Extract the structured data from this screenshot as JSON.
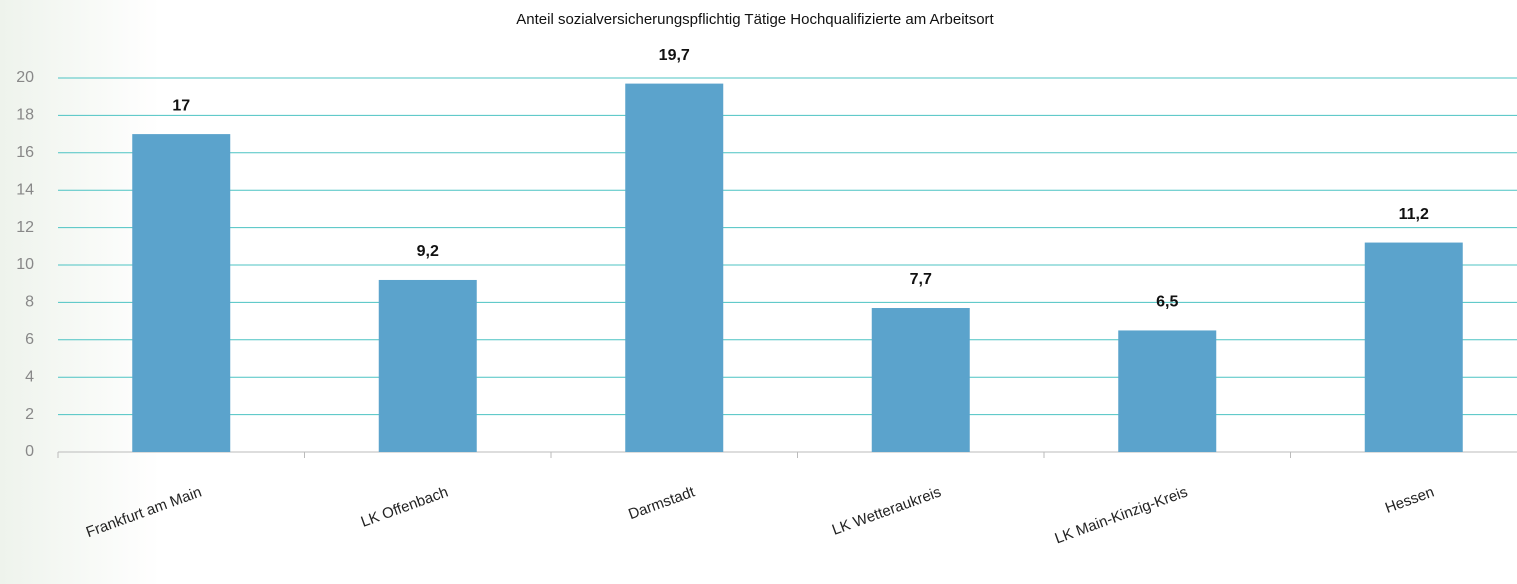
{
  "chart_data": {
    "type": "bar",
    "title": "Anteil sozialversicherungspflichtig Tätige Hochqualifizierte am Arbeitsort",
    "categories": [
      "Frankfurt am Main",
      "LK Offenbach",
      "Darmstadt",
      "LK Wetteraukreis",
      "LK Main-Kinzig-Kreis",
      "Hessen"
    ],
    "values": [
      17,
      9.2,
      19.7,
      7.7,
      6.5,
      11.2
    ],
    "value_labels": [
      "17",
      "9,2",
      "19,7",
      "7,7",
      "6,5",
      "11,2"
    ],
    "color": "#5ba3cc",
    "ylim": [
      0,
      20
    ],
    "yticks": [
      0,
      2,
      4,
      6,
      8,
      10,
      12,
      14,
      16,
      18,
      20
    ],
    "grid": true
  }
}
